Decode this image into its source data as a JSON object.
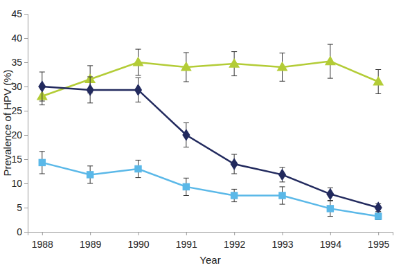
{
  "chart_data": {
    "type": "line",
    "x_label": "Year",
    "y_label": "Prevalence of HPV (%)",
    "categories": [
      "1988",
      "1989",
      "1990",
      "1991",
      "1992",
      "1993",
      "1994",
      "1995"
    ],
    "ylim": [
      0,
      45
    ],
    "yticks": [
      0,
      5,
      10,
      15,
      20,
      25,
      30,
      35,
      40,
      45
    ],
    "grid": false,
    "series": [
      {
        "color": "#b3cc36",
        "marker": "triangle",
        "line_style": "solid",
        "values": [
          28,
          31.5,
          35,
          34,
          34.7,
          34,
          35.2,
          31
        ],
        "errors": [
          1.8,
          2.8,
          2.7,
          3,
          2.5,
          2.9,
          3.5,
          2.5
        ]
      },
      {
        "color": "#222a5e",
        "marker": "diamond",
        "line_style": "solid",
        "values": [
          30,
          29.3,
          29.3,
          20,
          14,
          11.8,
          7.8,
          5
        ],
        "errors": [
          3,
          2.7,
          2.5,
          2.5,
          2,
          1.5,
          1.3,
          0.8
        ]
      },
      {
        "color": "#5ab8e8",
        "marker": "square",
        "line_style": "solid",
        "values": [
          14.3,
          11.8,
          13,
          9.3,
          7.5,
          7.5,
          4.8,
          3.2
        ],
        "errors": [
          2.3,
          1.8,
          1.8,
          1.8,
          1.3,
          1.8,
          1.6,
          0.7
        ]
      }
    ]
  }
}
